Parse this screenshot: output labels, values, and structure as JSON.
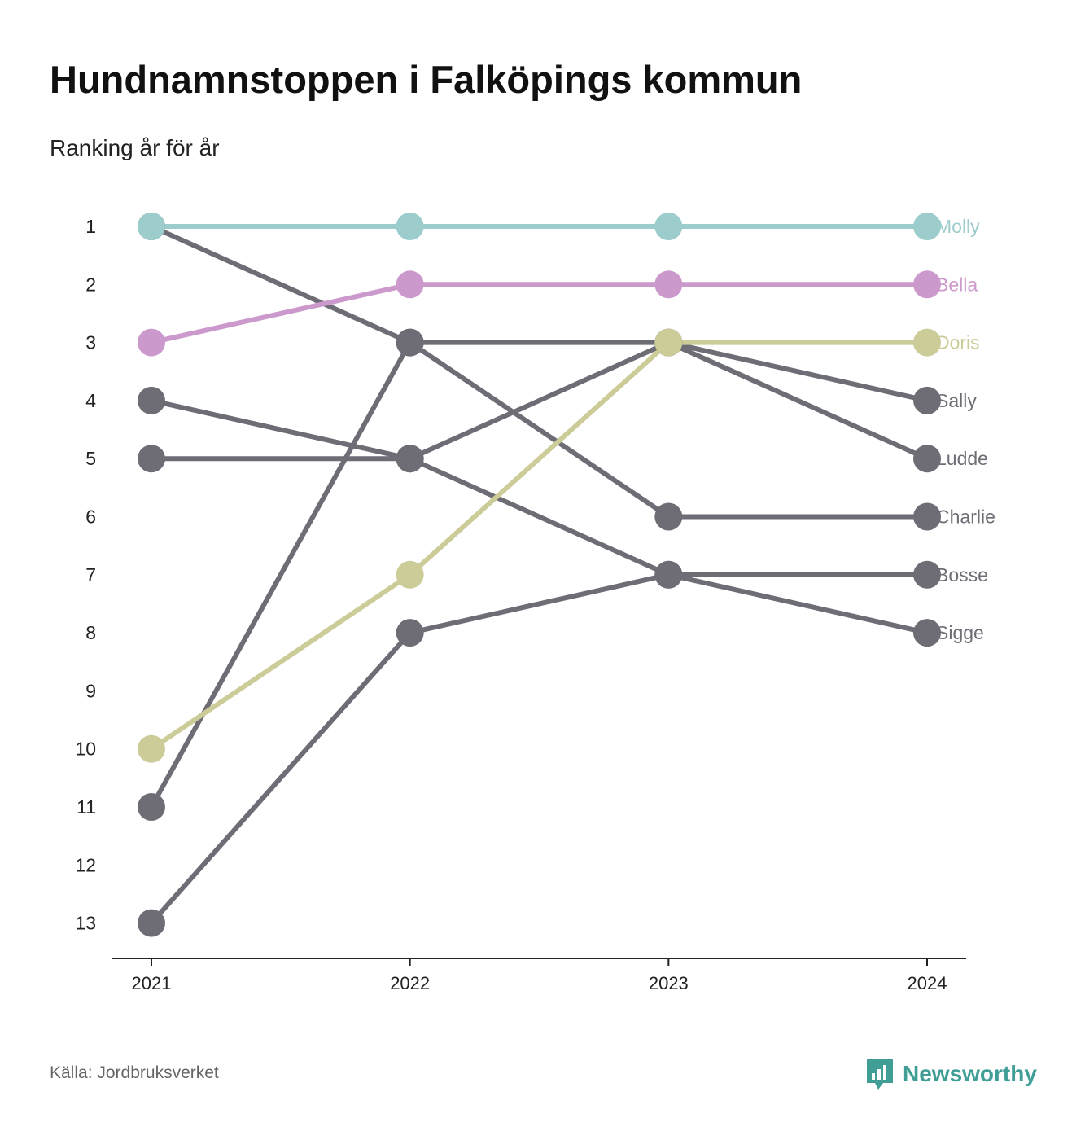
{
  "title": "Hundnamnstoppen i Falköpings kommun",
  "subtitle": "Ranking år för år",
  "source": "Källa: Jordbruksverket",
  "brand": {
    "name": "Newsworthy",
    "icon": "newsworthy-logo-icon",
    "color": "#3f9e96"
  },
  "colors": {
    "highlight_molly": "#9ccccc",
    "highlight_bella": "#cc99cc",
    "highlight_doris": "#cccc99",
    "other": "#6e6d75"
  },
  "chart_data": {
    "type": "line",
    "x": [
      "2021",
      "2022",
      "2023",
      "2024"
    ],
    "ylim": [
      1,
      13
    ],
    "y_reversed": true,
    "y_ticks": [
      "1",
      "2",
      "3",
      "4",
      "5",
      "6",
      "7",
      "8",
      "9",
      "10",
      "11",
      "12",
      "13"
    ],
    "grid": false,
    "series": [
      {
        "name": "Charlie",
        "color": "#6e6d75",
        "values": [
          1,
          3,
          6,
          6
        ]
      },
      {
        "name": "Sally",
        "color": "#6e6d75",
        "values": [
          11,
          3,
          3,
          4
        ]
      },
      {
        "name": "Ludde",
        "color": "#6e6d75",
        "values": [
          5,
          5,
          3,
          5
        ]
      },
      {
        "name": "Sigge",
        "color": "#6e6d75",
        "values": [
          4,
          5,
          7,
          8
        ]
      },
      {
        "name": "Bosse",
        "color": "#6e6d75",
        "values": [
          13,
          8,
          7,
          7
        ]
      },
      {
        "name": "Doris",
        "color": "#cccc99",
        "values": [
          10,
          7,
          3,
          3
        ]
      },
      {
        "name": "Bella",
        "color": "#cc99cc",
        "values": [
          3,
          2,
          2,
          2
        ]
      },
      {
        "name": "Molly",
        "color": "#9ccccc",
        "values": [
          1,
          1,
          1,
          1
        ]
      }
    ]
  }
}
